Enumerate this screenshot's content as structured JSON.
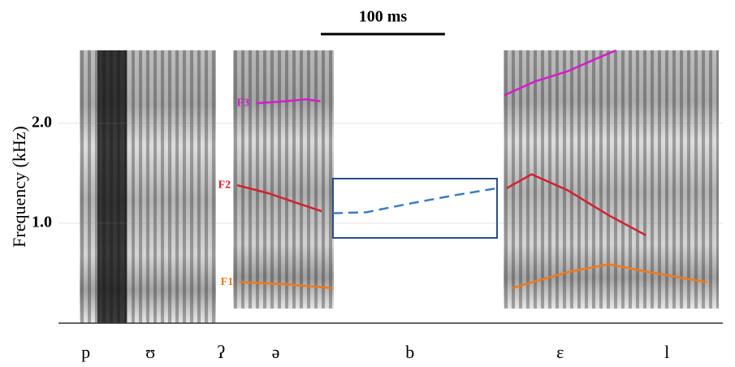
{
  "chart_data": {
    "type": "line",
    "ylabel": "Frequency (kHz)",
    "xlim": [
      0,
      535
    ],
    "ylim": [
      0,
      2.73
    ],
    "yticks": [
      {
        "value": 1,
        "label": "1.0"
      },
      {
        "value": 2,
        "label": "2.0"
      }
    ],
    "grid": true,
    "scale_bar": {
      "label": "100 ms",
      "length": 100
    },
    "categories": [
      "p",
      "ʊ",
      "ʔ",
      "ə",
      "b",
      "ɛ",
      "l"
    ],
    "x": [
      22,
      74,
      131,
      175,
      283,
      404,
      490
    ],
    "series": [
      {
        "name": "F3",
        "color": "#d41ccc",
        "x": [
          159,
          182,
          199,
          211,
          null,
          359,
          384,
          410,
          430,
          449
        ],
        "values": [
          2.2,
          2.22,
          2.24,
          2.22,
          null,
          2.28,
          2.42,
          2.52,
          2.63,
          2.73
        ]
      },
      {
        "name": "F2",
        "color": "#d42030",
        "x": [
          144,
          169,
          195,
          212,
          null,
          361,
          381,
          410,
          443,
          473
        ],
        "values": [
          1.38,
          1.3,
          1.19,
          1.12,
          null,
          1.35,
          1.49,
          1.33,
          1.08,
          0.88
        ]
      },
      {
        "color": "#3a7dc0",
        "dashed": true,
        "x": [
          221,
          248,
          280,
          319,
          353
        ],
        "values": [
          1.1,
          1.11,
          1.19,
          1.28,
          1.35
        ]
      },
      {
        "name": "F1",
        "color": "#f07a1c",
        "x": [
          146,
          182,
          221,
          null,
          365,
          410,
          443,
          476,
          522
        ],
        "values": [
          0.41,
          0.39,
          0.35,
          null,
          0.35,
          0.51,
          0.59,
          0.51,
          0.41
        ]
      }
    ]
  }
}
